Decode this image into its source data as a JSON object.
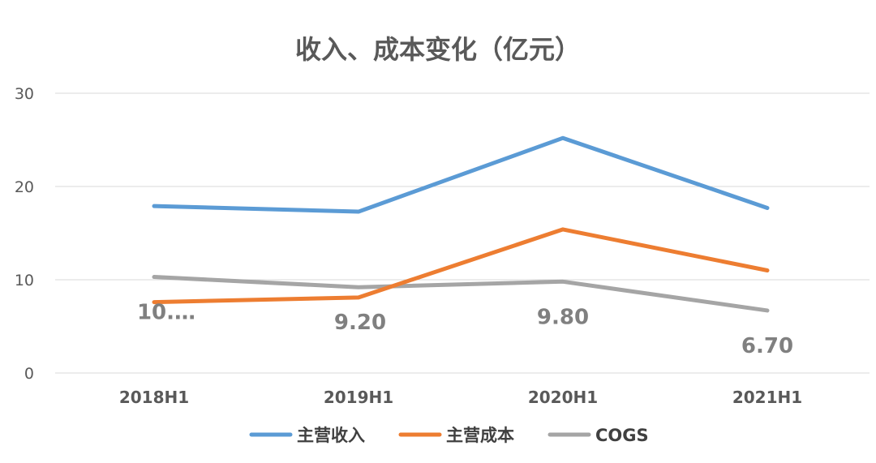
{
  "chart_data": {
    "type": "line",
    "title": "收入、成本变化（亿元）",
    "categories": [
      "2018H1",
      "2019H1",
      "2020H1",
      "2021H1"
    ],
    "ylim": [
      0,
      30
    ],
    "yticks": [
      "0",
      "10",
      "20",
      "30"
    ],
    "grid": true,
    "legend_position": "bottom",
    "series": [
      {
        "name": "主营收入",
        "color": "#5B9BD5",
        "values": [
          17.9,
          17.3,
          25.2,
          17.7
        ]
      },
      {
        "name": "主营成本",
        "color": "#ED7D31",
        "values": [
          7.6,
          8.1,
          15.4,
          11.0
        ]
      },
      {
        "name": "COGS",
        "color": "#A5A5A5",
        "values": [
          10.3,
          9.2,
          9.8,
          6.7
        ]
      }
    ],
    "data_labels": {
      "series": "COGS",
      "labels": [
        "10.…",
        "9.20",
        "9.80",
        "6.70"
      ]
    }
  }
}
